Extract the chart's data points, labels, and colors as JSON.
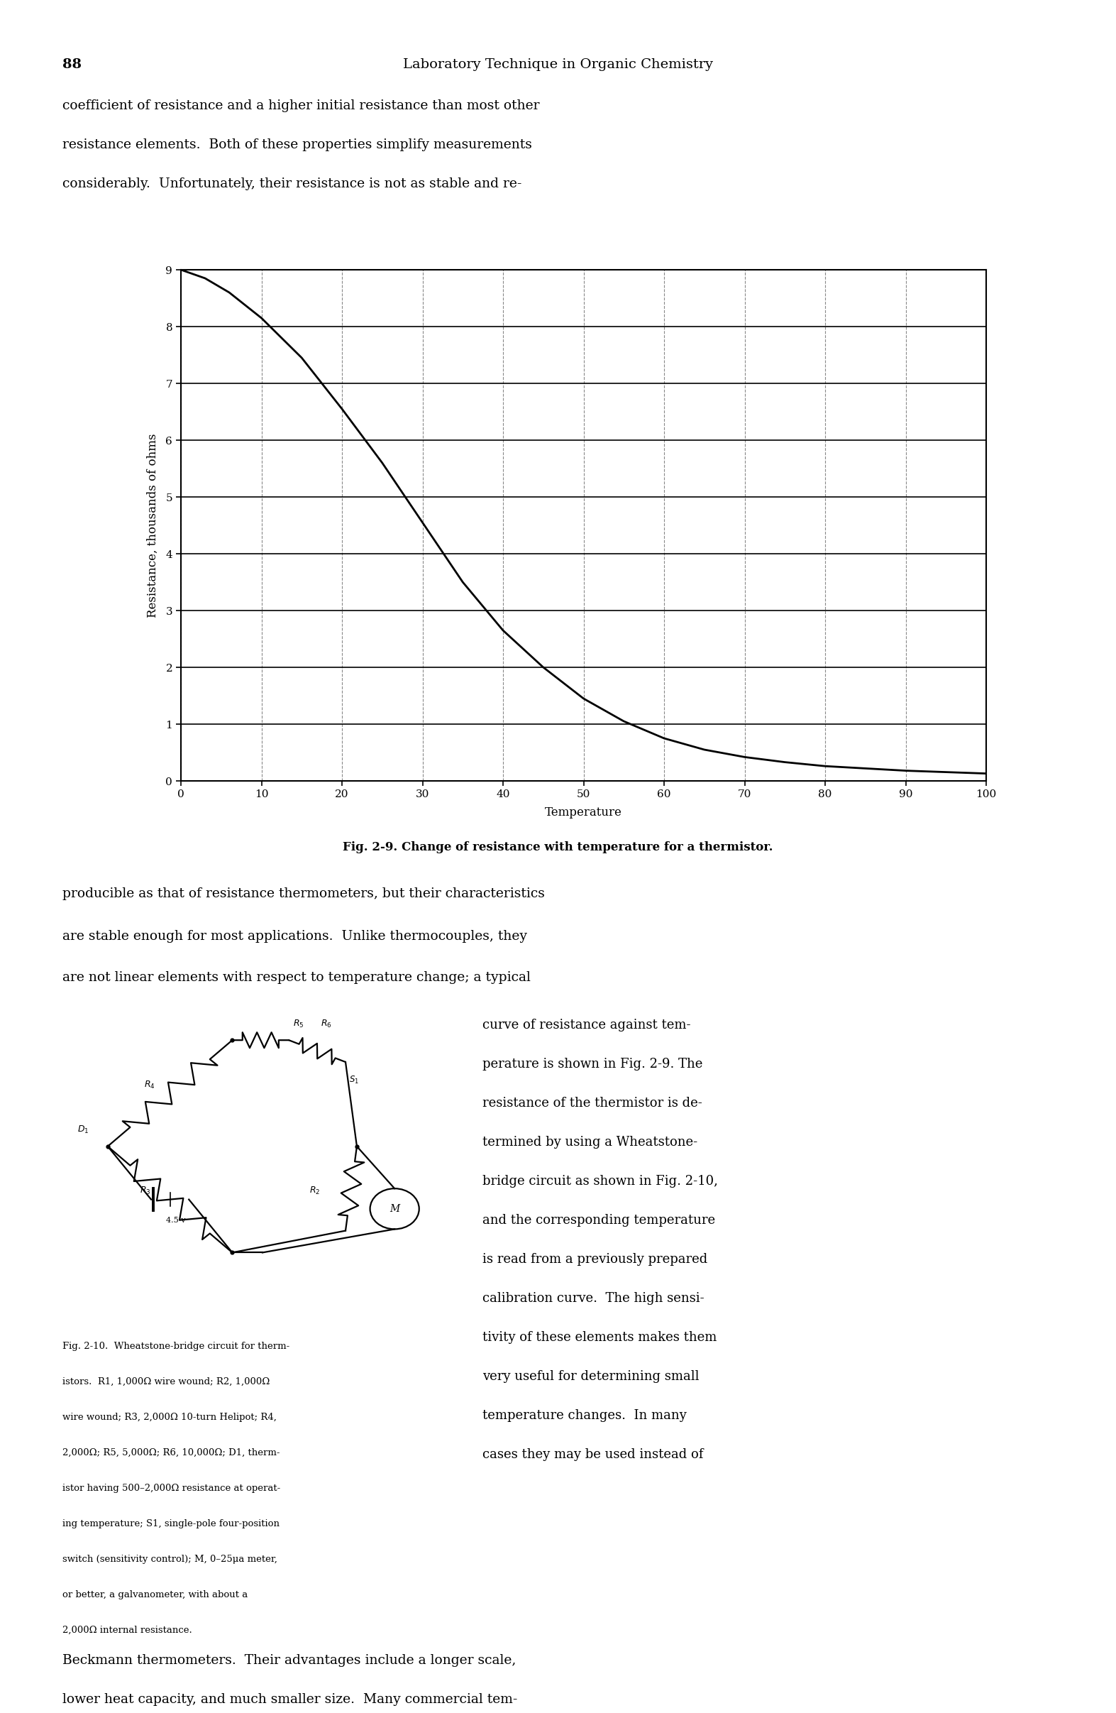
{
  "page_number": "88",
  "header_title": "Laboratory Technique in Organic Chemistry",
  "top_text_lines": [
    "coefficient of resistance and a higher initial resistance than most other",
    "resistance elements.  Both of these properties simplify measurements",
    "considerably.  Unfortunately, their resistance is not as stable and re-"
  ],
  "graph": {
    "xlabel": "Temperature",
    "ylabel": "Resistance, thousands of ohms",
    "xlim": [
      0,
      100
    ],
    "ylim": [
      0,
      9
    ],
    "xticks": [
      0,
      10,
      20,
      30,
      40,
      50,
      60,
      70,
      80,
      90,
      100
    ],
    "yticks": [
      0,
      1,
      2,
      3,
      4,
      5,
      6,
      7,
      8,
      9
    ],
    "curve_x": [
      0,
      3,
      6,
      10,
      15,
      20,
      25,
      30,
      35,
      40,
      45,
      50,
      55,
      60,
      65,
      70,
      75,
      80,
      90,
      100
    ],
    "curve_y": [
      9.0,
      8.85,
      8.6,
      8.15,
      7.45,
      6.55,
      5.6,
      4.55,
      3.5,
      2.65,
      2.0,
      1.45,
      1.05,
      0.75,
      0.55,
      0.42,
      0.33,
      0.26,
      0.18,
      0.13
    ],
    "fig_caption": "Fig. 2-9. Change of resistance with temperature for a thermistor."
  },
  "body_text_lines": [
    "producible as that of resistance thermometers, but their characteristics",
    "are stable enough for most applications.  Unlike thermocouples, they",
    "are not linear elements with respect to temperature change; a typical"
  ],
  "right_col_lines": [
    "curve of resistance against tem-",
    "perature is shown in Fig. 2-9. The",
    "resistance of the thermistor is de-",
    "termined by using a Wheatstone-",
    "bridge circuit as shown in Fig. 2-10,",
    "and the corresponding temperature",
    "is read from a previously prepared",
    "calibration curve.  The high sensi-",
    "tivity of these elements makes them",
    "very useful for determining small",
    "temperature changes.  In many",
    "cases they may be used instead of"
  ],
  "caption_lines": [
    "Fig. 2-10.  Wheatstone-bridge circuit for therm-",
    "istors.  R1, 1,000Ω wire wound; R2, 1,000Ω",
    "wire wound; R3, 2,000Ω 10-turn Helipot; R4,",
    "2,000Ω; R5, 5,000Ω; R6, 10,000Ω; D1, therm-",
    "istor having 500–2,000Ω resistance at operat-",
    "ing temperature; S1, single-pole four-position",
    "switch (sensitivity control); M, 0–25μa meter,",
    "or better, a galvanometer, with about a",
    "2,000Ω internal resistance."
  ],
  "bottom_text_lines": [
    "Beckmann thermometers.  Their advantages include a longer scale,",
    "lower heat capacity, and much smaller size.  Many commercial tem-"
  ],
  "background_color": "#ffffff",
  "text_color": "#000000",
  "grid_major_color": "#000000",
  "grid_minor_color": "#aaaaaa",
  "curve_color": "#000000"
}
